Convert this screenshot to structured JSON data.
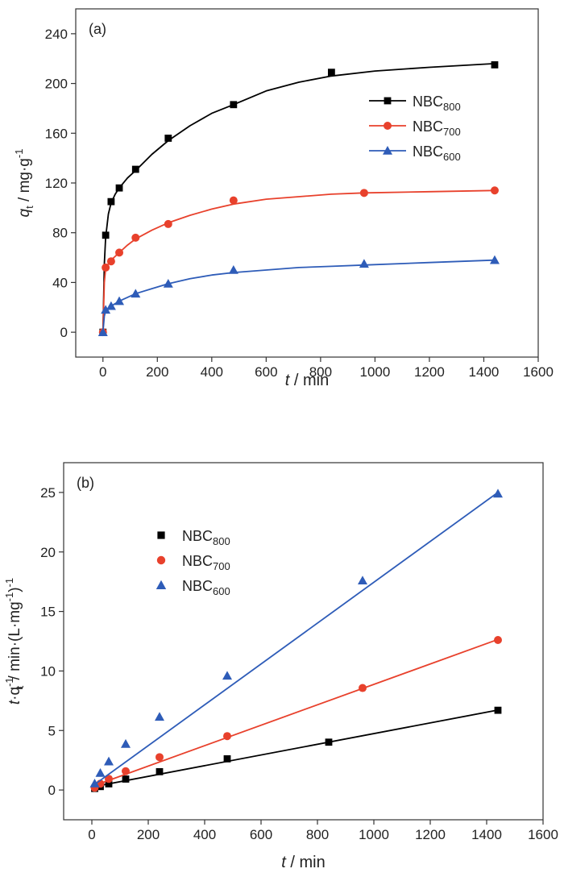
{
  "chart_data": [
    {
      "panel_label": "(a)",
      "type": "line",
      "xlabel_italic": "t",
      "xlabel_unit": " / min",
      "ylabel_italic": "q",
      "ylabel_sub": "t",
      "ylabel_unit": " / mg·g",
      "ylabel_sup": "-1",
      "xlim": [
        -100,
        1600
      ],
      "ylim": [
        -20,
        260
      ],
      "xticks": [
        0,
        200,
        400,
        600,
        800,
        1000,
        1200,
        1400,
        1600
      ],
      "yticks": [
        0,
        40,
        80,
        120,
        160,
        200,
        240
      ],
      "grid": false,
      "legend_position": "right, upper-middle",
      "series": [
        {
          "name": "NBC",
          "name_sub": "800",
          "color": "#000000",
          "marker": "square",
          "x": [
            0,
            10,
            30,
            60,
            120,
            240,
            480,
            840,
            1440
          ],
          "y": [
            0,
            78,
            105,
            116,
            131,
            156,
            183,
            209,
            215
          ],
          "fit_x": [
            0,
            5,
            10,
            20,
            30,
            45,
            60,
            90,
            120,
            180,
            240,
            320,
            400,
            480,
            600,
            720,
            840,
            1000,
            1200,
            1440
          ],
          "fit_y": [
            0,
            55,
            76,
            95,
            104,
            111,
            116,
            124,
            130,
            143,
            154,
            166,
            176,
            183,
            194,
            201,
            206,
            210,
            213,
            216
          ]
        },
        {
          "name": "NBC",
          "name_sub": "700",
          "color": "#e8412c",
          "marker": "circle",
          "x": [
            0,
            10,
            30,
            60,
            120,
            240,
            480,
            960,
            1440
          ],
          "y": [
            0,
            52,
            57,
            64,
            76,
            87,
            106,
            112,
            114
          ],
          "fit_x": [
            0,
            5,
            10,
            20,
            30,
            45,
            60,
            90,
            120,
            180,
            240,
            320,
            400,
            480,
            600,
            720,
            840,
            960,
            1200,
            1440
          ],
          "fit_y": [
            0,
            40,
            51,
            55,
            58,
            61,
            64,
            70,
            75,
            82,
            88,
            94,
            99,
            103,
            107,
            109,
            111,
            112,
            113,
            114
          ]
        },
        {
          "name": "NBC",
          "name_sub": "600",
          "color": "#2e5cb8",
          "marker": "triangle",
          "x": [
            0,
            10,
            30,
            60,
            120,
            240,
            480,
            960,
            1440
          ],
          "y": [
            0,
            18,
            21,
            25,
            31,
            39,
            50,
            55,
            58
          ],
          "fit_x": [
            0,
            5,
            10,
            20,
            30,
            45,
            60,
            90,
            120,
            180,
            240,
            320,
            400,
            480,
            600,
            720,
            840,
            960,
            1200,
            1440
          ],
          "fit_y": [
            0,
            13,
            17,
            19,
            21,
            23,
            25,
            28,
            31,
            35,
            39,
            43,
            46,
            48,
            50,
            52,
            53,
            54,
            56,
            58
          ]
        }
      ]
    },
    {
      "panel_label": "(b)",
      "type": "scatter",
      "xlabel_italic": "t",
      "xlabel_unit": " / min",
      "ylabel_italic": "t",
      "ylabel_text": "·q",
      "ylabel_sup1": "-1",
      "ylabel_sub": "t",
      "ylabel_unit": " / min·(L·mg",
      "ylabel_sup2": "-1",
      "ylabel_close": ")",
      "ylabel_sup3": "-1",
      "xlim": [
        -100,
        1600
      ],
      "ylim": [
        -2.5,
        27.5
      ],
      "xticks": [
        0,
        200,
        400,
        600,
        800,
        1000,
        1200,
        1400,
        1600
      ],
      "yticks": [
        0,
        5,
        10,
        15,
        20,
        25
      ],
      "grid": false,
      "legend_position": "upper-left",
      "series": [
        {
          "name": "NBC",
          "name_sub": "800",
          "color": "#000000",
          "marker": "square",
          "x": [
            10,
            30,
            60,
            120,
            240,
            480,
            840,
            1440
          ],
          "y": [
            0.13,
            0.29,
            0.52,
            0.92,
            1.54,
            2.62,
            4.02,
            6.7
          ],
          "fit_x": [
            0,
            1440
          ],
          "fit_y": [
            0.25,
            6.72
          ]
        },
        {
          "name": "NBC",
          "name_sub": "700",
          "color": "#e8412c",
          "marker": "circle",
          "x": [
            10,
            30,
            60,
            120,
            240,
            480,
            960,
            1440
          ],
          "y": [
            0.19,
            0.53,
            0.94,
            1.58,
            2.76,
            4.53,
            8.57,
            12.6
          ],
          "fit_x": [
            0,
            1440
          ],
          "fit_y": [
            0.3,
            12.65
          ]
        },
        {
          "name": "NBC",
          "name_sub": "600",
          "color": "#2e5cb8",
          "marker": "triangle",
          "x": [
            10,
            30,
            60,
            120,
            240,
            480,
            960,
            1440
          ],
          "y": [
            0.55,
            1.43,
            2.4,
            3.87,
            6.15,
            9.6,
            17.6,
            24.9
          ],
          "fit_x": [
            0,
            1440
          ],
          "fit_y": [
            0.3,
            25.0
          ]
        }
      ]
    }
  ]
}
